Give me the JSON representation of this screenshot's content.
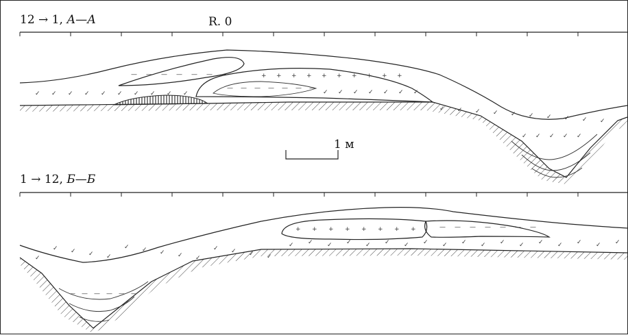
{
  "section_top": {
    "label_prefix": "12 → 1, ",
    "label_letters": "А—А",
    "reference": "R. 0"
  },
  "section_bottom": {
    "label_prefix": "1 → 12, ",
    "label_letters": "Б—Б"
  },
  "scale_bar": {
    "label": "1 м"
  }
}
